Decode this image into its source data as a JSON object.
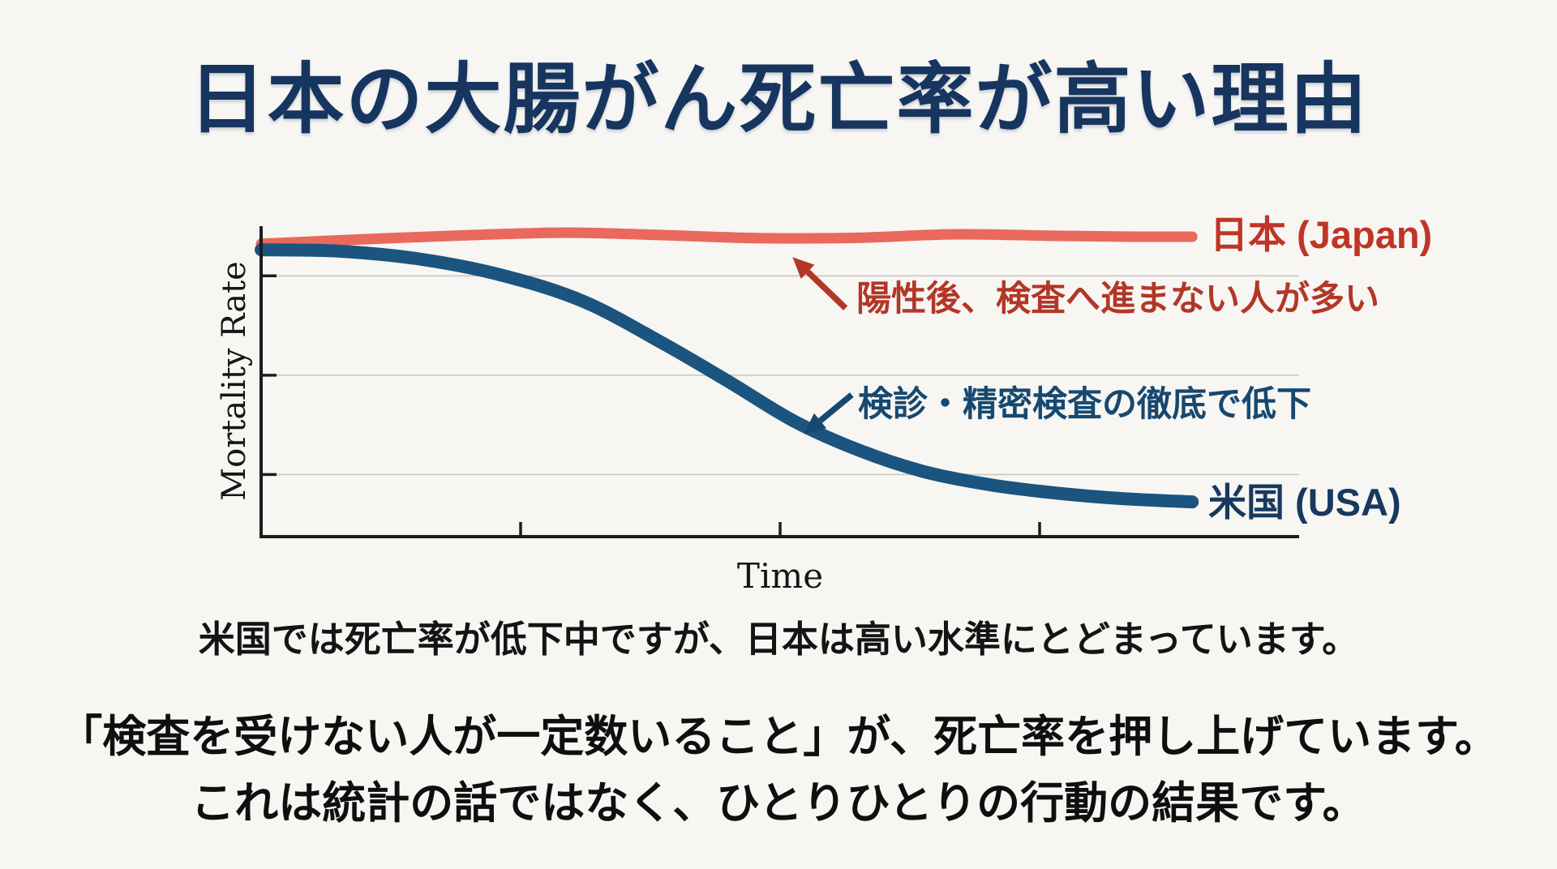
{
  "page": {
    "background": "#f7f6f3"
  },
  "title": {
    "text": "日本の大腸がん死亡率が高い理由",
    "color": "#16355f"
  },
  "chart_data": {
    "type": "line",
    "title": "",
    "xlabel": "Time",
    "ylabel": "Mortality Rate",
    "xlim": [
      0,
      10
    ],
    "ylim": [
      0,
      10
    ],
    "x_ticks": [
      2.5,
      5.0,
      7.5
    ],
    "y_ticks": [
      2.0,
      5.2,
      8.4
    ],
    "x_tick_labels": [
      "",
      "",
      ""
    ],
    "y_tick_labels": [
      "",
      "",
      ""
    ],
    "grid": "horizontal",
    "axis_color": "#1d1d1d",
    "grid_color": "#c9c9c9",
    "legend_position": "line-end-labels",
    "series": [
      {
        "name": "日本 (Japan)",
        "color": "#e9695c",
        "label_color": "#bf3526",
        "stroke_width": 13,
        "points": [
          [
            0,
            9.43
          ],
          [
            1.0,
            9.58
          ],
          [
            2.0,
            9.71
          ],
          [
            2.95,
            9.79
          ],
          [
            3.89,
            9.71
          ],
          [
            4.83,
            9.61
          ],
          [
            5.77,
            9.63
          ],
          [
            6.7,
            9.74
          ],
          [
            7.64,
            9.69
          ],
          [
            8.42,
            9.66
          ],
          [
            8.97,
            9.66
          ]
        ]
      },
      {
        "name": "米国 (USA)",
        "color": "#1a547f",
        "label_color": "#17395f",
        "stroke_width": 16,
        "points": [
          [
            0,
            9.24
          ],
          [
            0.77,
            9.19
          ],
          [
            1.55,
            8.93
          ],
          [
            2.33,
            8.41
          ],
          [
            3.11,
            7.57
          ],
          [
            3.89,
            6.19
          ],
          [
            4.52,
            4.96
          ],
          [
            5.14,
            3.71
          ],
          [
            5.77,
            2.77
          ],
          [
            6.39,
            2.09
          ],
          [
            7.02,
            1.67
          ],
          [
            7.64,
            1.41
          ],
          [
            8.27,
            1.23
          ],
          [
            8.97,
            1.12
          ]
        ]
      }
    ],
    "annotations": [
      {
        "id": "japan-annotation",
        "text": "陽性後、検査へ進まない人が多い",
        "color": "#b23727",
        "arrow": {
          "from": [
            5.63,
            7.36
          ],
          "to": [
            5.12,
            9.0
          ]
        }
      },
      {
        "id": "usa-annotation",
        "text": "検診・精密検査の徹底で低下",
        "color": "#17486f",
        "arrow": {
          "from": [
            5.69,
            4.57
          ],
          "to": [
            5.23,
            3.3
          ]
        }
      }
    ]
  },
  "caption": {
    "line1": "米国では死亡率が低下中ですが、日本は高い水準にとどまっています。",
    "line1_color": "#141414",
    "emphasis_line1": "「検査を受けない人が一定数いること」が、死亡率を押し上げています。",
    "emphasis_line2": "これは統計の話ではなく、ひとりひとりの行動の結果です。",
    "emphasis_color": "#0f0f0f"
  }
}
